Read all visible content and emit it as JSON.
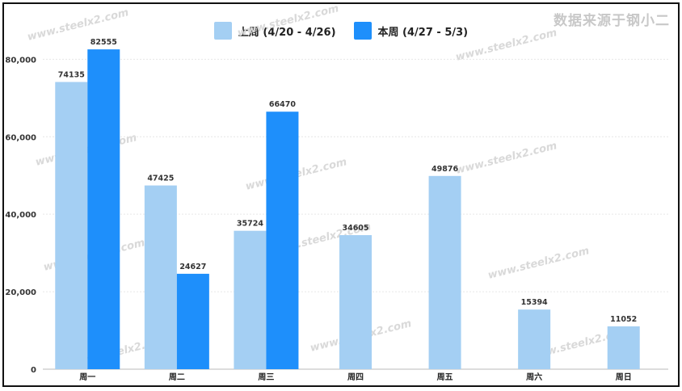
{
  "source_note": "数据来源于钢小二",
  "watermark": "www.steelx2.com",
  "chart_data": {
    "type": "bar",
    "categories": [
      "周一",
      "周二",
      "周三",
      "周四",
      "周五",
      "周六",
      "周日"
    ],
    "series": [
      {
        "name": "上周 (4/20 - 4/26)",
        "color": "#a4cff3",
        "values": [
          74135,
          47425,
          35724,
          34605,
          49876,
          15394,
          11052
        ]
      },
      {
        "name": "本周 (4/27 - 5/3)",
        "color": "#1e8ffb",
        "values": [
          82555,
          24627,
          66470,
          null,
          null,
          null,
          null
        ]
      }
    ],
    "yticks": [
      0,
      20000,
      40000,
      60000,
      80000
    ],
    "ytick_labels": [
      "0",
      "20,000",
      "40,000",
      "60,000",
      "80,000"
    ],
    "ylim": [
      0,
      88000
    ],
    "grid": true,
    "legend_position": "top-center"
  }
}
